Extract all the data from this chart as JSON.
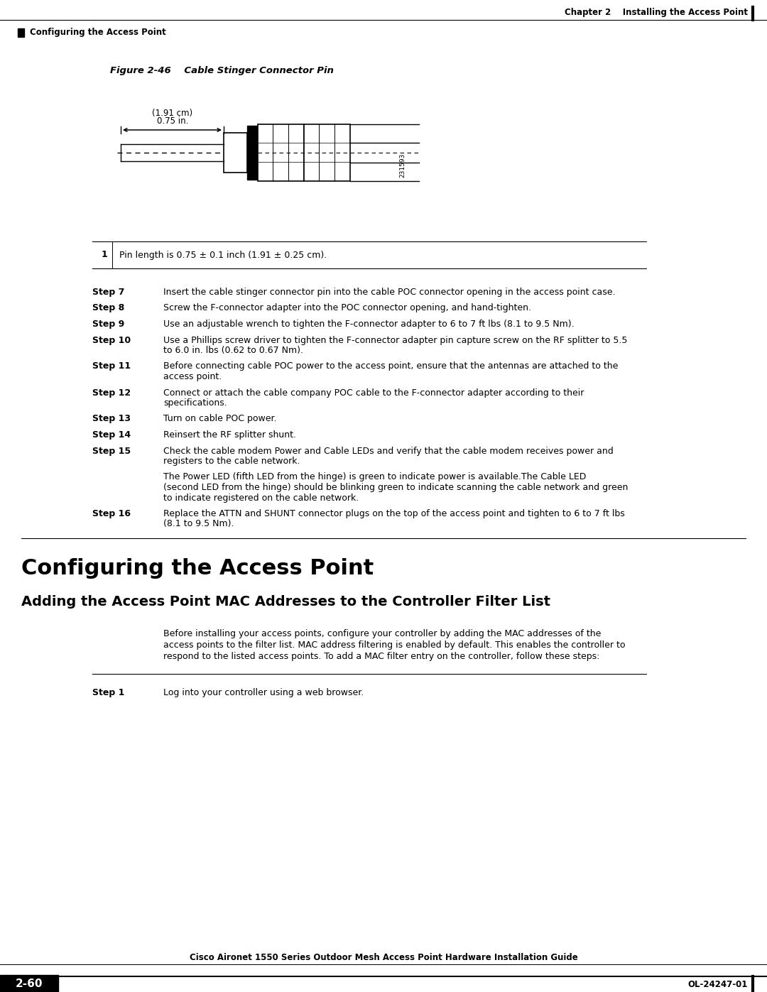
{
  "bg_color": "#ffffff",
  "page_width": 10.8,
  "page_height": 13.97,
  "header": {
    "top_right": "Chapter 2    Installing the Access Point",
    "top_left_text": "Configuring the Access Point"
  },
  "figure_caption_bold": "Figure 2-46",
  "figure_caption_rest": "       Cable Stinger Connector Pin",
  "table_row": {
    "number": "1",
    "text": "Pin length is 0.75 ± 0.1 inch (1.91 ± 0.25 cm)."
  },
  "steps": [
    {
      "label": "Step 7",
      "text": "Insert the cable stinger connector pin into the cable POC connector opening in the access point case."
    },
    {
      "label": "Step 8",
      "text": "Screw the F-connector adapter into the POC connector opening, and hand-tighten."
    },
    {
      "label": "Step 9",
      "text": "Use an adjustable wrench to tighten the F-connector adapter to 6 to 7 ft lbs (8.1 to 9.5 Nm)."
    },
    {
      "label": "Step 10",
      "text": "Use a Phillips screw driver to tighten the F-connector adapter pin capture screw on the RF splitter to 5.5\nto 6.0 in. lbs (0.62 to 0.67 Nm)."
    },
    {
      "label": "Step 11",
      "text": "Before connecting cable POC power to the access point, ensure that the antennas are attached to the\naccess point."
    },
    {
      "label": "Step 12",
      "text": "Connect or attach the cable company POC cable to the F-connector adapter according to their\nspecifications."
    },
    {
      "label": "Step 13",
      "text": "Turn on cable POC power."
    },
    {
      "label": "Step 14",
      "text": "Reinsert the RF splitter shunt."
    },
    {
      "label": "Step 15",
      "text": "Check the cable modem Power and Cable LEDs and verify that the cable modem receives power and\nregisters to the cable network.\n\nThe Power LED (fifth LED from the hinge) is green to indicate power is available.The Cable LED\n(second LED from the hinge) should be blinking green to indicate scanning the cable network and green\nto indicate registered on the cable network."
    },
    {
      "label": "Step 16",
      "text": "Replace the ATTN and SHUNT connector plugs on the top of the access point and tighten to 6 to 7 ft lbs\n(8.1 to 9.5 Nm)."
    }
  ],
  "section_heading": "Configuring the Access Point",
  "sub_heading": "Adding the Access Point MAC Addresses to the Controller Filter List",
  "intro_text": "Before installing your access points, configure your controller by adding the MAC addresses of the\naccess points to the filter list. MAC address filtering is enabled by default. This enables the controller to\nrespond to the listed access points. To add a MAC filter entry on the controller, follow these steps:",
  "step1": {
    "label": "Step 1",
    "text": "Log into your controller using a web browser."
  },
  "footer": {
    "left_square": "2-60",
    "center": "Cisco Aironet 1550 Series Outdoor Mesh Access Point Hardware Installation Guide",
    "right": "OL-24247-01"
  }
}
